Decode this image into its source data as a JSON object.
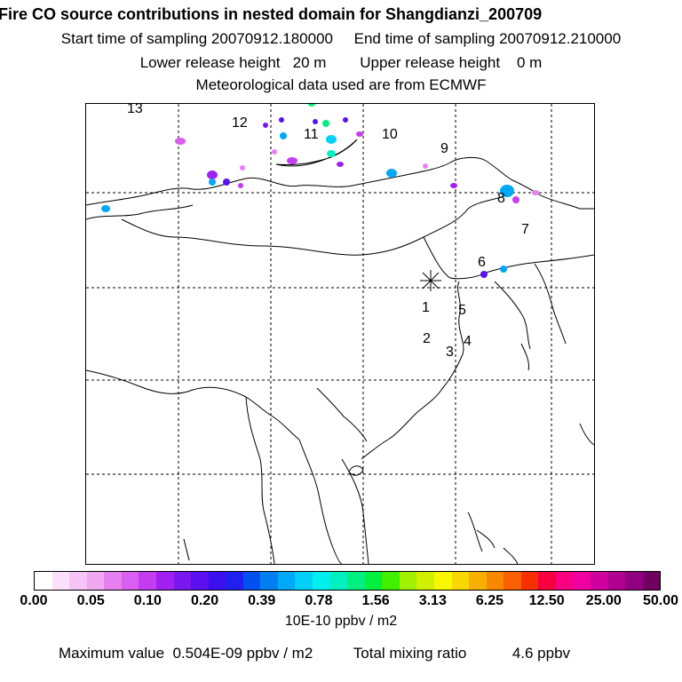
{
  "header": {
    "title": "Fire CO source contributions in nested domain for Shangdianzi_200709",
    "sampling": "Start time of sampling 20070912.180000     End time of sampling 20070912.210000",
    "release": "Lower release height   20 m        Upper release height    0 m",
    "met": "Meteorological data used are from ECMWF"
  },
  "map": {
    "receptor_symbol": "asterisk",
    "regions": [
      "1",
      "2",
      "3",
      "4",
      "5",
      "6",
      "7",
      "8",
      "9",
      "10",
      "11",
      "12",
      "13"
    ]
  },
  "colorbar": {
    "colors": [
      "#ffffff",
      "#fbe0fb",
      "#f7c4f7",
      "#f0a8f0",
      "#e680f0",
      "#d95ff0",
      "#c43cf0",
      "#a020f0",
      "#7a18f0",
      "#5a10f0",
      "#3a10f0",
      "#2020f0",
      "#0050f0",
      "#0080f0",
      "#00a8f8",
      "#00d0f8",
      "#00f0f0",
      "#00f0c0",
      "#00f080",
      "#00f040",
      "#40f000",
      "#a0f000",
      "#d0f000",
      "#f8f800",
      "#f8d800",
      "#f8b000",
      "#f88800",
      "#f86000",
      "#f83000",
      "#f80040",
      "#f80080",
      "#f000a0",
      "#d000a0",
      "#b00090",
      "#900080",
      "#700060"
    ],
    "tick_labels": [
      "0.00",
      "0.05",
      "0.10",
      "0.20",
      "0.39",
      "0.78",
      "1.56",
      "3.13",
      "6.25",
      "12.50",
      "25.00",
      "50.00"
    ],
    "unit": "10E-10 ppbv / m2"
  },
  "footer": {
    "max_label": "Maximum value  0.504E-09 ppbv / m2",
    "total_label": "Total mixing ratio",
    "total_value": "4.6 ppbv"
  }
}
